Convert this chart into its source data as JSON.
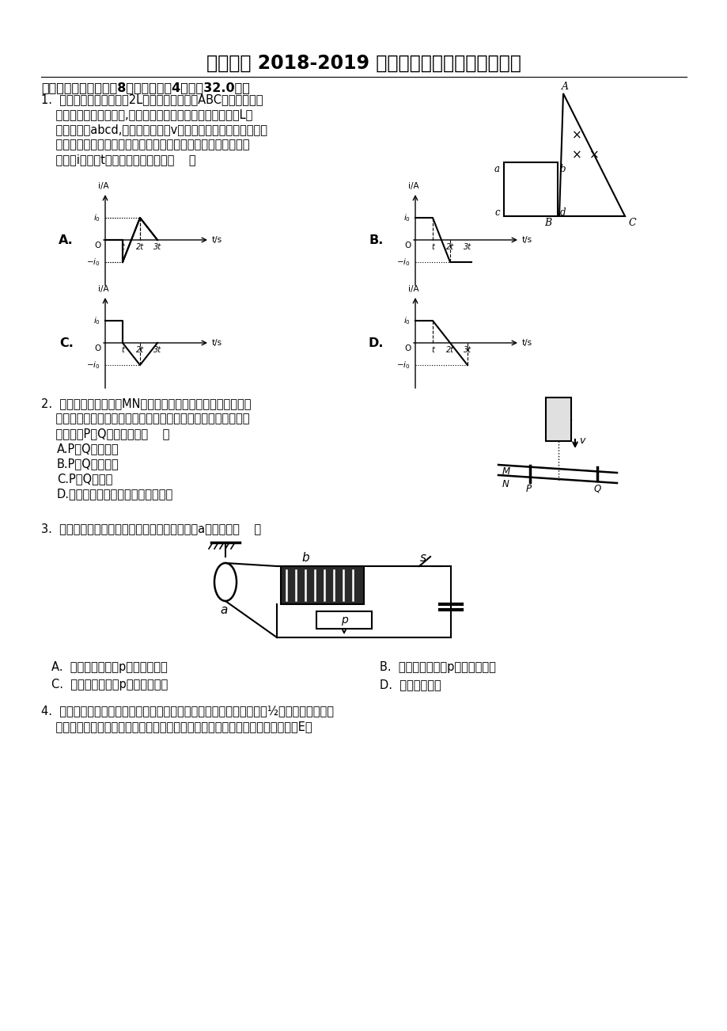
{
  "title": "程溪中学 2018-2019 高二年下学期物理期中考试卷",
  "section1": "一、单选题（本大题共8小题，每小题4分，共32.0分）",
  "q1_line1": "1.  如图所示，一个边长为2L的等腰直角三角形ABC区域内，有垂",
  "q1_line2": "    直纸面向里的匀强磁场,其左侧有一个用金属丝制成的边长为L的",
  "q1_line3": "    正方形线框abcd,线框以水平速度v匀速通过整个匀强磁场区域，",
  "q1_line4": "    设电流逆时针方向为正．则在线框通过磁场的过程中，线框中感",
  "q1_line5": "    应电流i随时间t变化的规律正确的是（    ）",
  "q2_line1": "2.  如图所示，光滑导轨MN水平放置，两根导体棒平行放于导轨",
  "q2_line2": "    上，形成一个闭合回路，当一条形磁铁下落穿出导轨平面的过程",
  "q2_line3": "    中，导体P、Q运动情况是（    ）",
  "q2_A": "A.P、Q互相靠拢",
  "q2_B": "B.P、Q互相远离",
  "q2_C": "C.P、Q均静止",
  "q2_D": "D.因磁铁下落的极性未知，无法判断",
  "q3_text": "3.  如图所示，当通过下列哪种情况改变时，线圈a向右摆动（    ）",
  "q3_A": "A.  闭合开关，滑片p向右匀速滑动",
  "q3_B": "B.  闭合开关，滑片p向左加速滑动",
  "q3_C": "C.  闭合开关，滑片p向左匀速滑动",
  "q3_D": "D.  开关闭合瞬间",
  "q4_line1": "4.  如图所示是两个互连的金属圆环，小金属环的电阻是大金属环电阻的½，磁场垂直穿过大",
  "q4_line2": "    金属环在区域。当磁感应强度随时间均匀变化时，在大环内产生的感应电动势为E，",
  "bg_color": "#ffffff"
}
